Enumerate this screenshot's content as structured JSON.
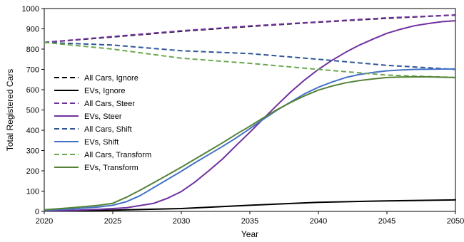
{
  "chart_data": {
    "type": "line",
    "title": "",
    "xlabel": "Year",
    "ylabel": "Total Registered Cars",
    "xlim": [
      2020,
      2050
    ],
    "ylim": [
      0,
      1000
    ],
    "x_ticks": [
      2020,
      2025,
      2030,
      2035,
      2040,
      2045,
      2050
    ],
    "y_ticks": [
      0,
      100,
      200,
      300,
      400,
      500,
      600,
      700,
      800,
      900,
      1000
    ],
    "grid": "none",
    "legend_position": "left",
    "series": [
      {
        "name": "All Cars, Ignore",
        "color": "#000000",
        "dash": "dashed",
        "x": [
          2020,
          2025,
          2030,
          2035,
          2040,
          2045,
          2050
        ],
        "y": [
          833,
          860,
          888,
          912,
          933,
          952,
          968
        ]
      },
      {
        "name": "EVs, Ignore",
        "color": "#000000",
        "dash": "solid",
        "x": [
          2020,
          2025,
          2030,
          2035,
          2040,
          2045,
          2050
        ],
        "y": [
          3,
          6,
          14,
          30,
          45,
          52,
          57
        ]
      },
      {
        "name": "All Cars, Steer",
        "color": "#7030a0",
        "dash": "dashed",
        "x": [
          2020,
          2025,
          2030,
          2035,
          2040,
          2045,
          2050
        ],
        "y": [
          833,
          862,
          890,
          914,
          934,
          954,
          968
        ]
      },
      {
        "name": "EVs, Steer",
        "color": "#7030a0",
        "dash": "solid",
        "x": [
          2020,
          2022,
          2024,
          2026,
          2028,
          2029,
          2030,
          2031,
          2032,
          2033,
          2034,
          2035,
          2036,
          2037,
          2038,
          2039,
          2040,
          2041,
          2042,
          2043,
          2044,
          2045,
          2046,
          2047,
          2048,
          2049,
          2050
        ],
        "y": [
          3,
          5,
          10,
          18,
          40,
          65,
          98,
          145,
          200,
          258,
          325,
          390,
          458,
          525,
          590,
          648,
          700,
          745,
          785,
          820,
          850,
          878,
          898,
          915,
          926,
          935,
          940
        ]
      },
      {
        "name": "All Cars, Shift",
        "color": "#2e5597",
        "dash": "dashed",
        "x": [
          2020,
          2025,
          2030,
          2035,
          2040,
          2045,
          2050
        ],
        "y": [
          833,
          820,
          792,
          778,
          750,
          720,
          700
        ]
      },
      {
        "name": "EVs, Shift",
        "color": "#4472c4",
        "dash": "solid",
        "x": [
          2020,
          2022,
          2024,
          2025,
          2026,
          2027,
          2028,
          2029,
          2030,
          2031,
          2032,
          2033,
          2034,
          2035,
          2036,
          2037,
          2038,
          2039,
          2040,
          2041,
          2042,
          2043,
          2044,
          2045,
          2046,
          2047,
          2048,
          2050
        ],
        "y": [
          5,
          12,
          22,
          30,
          48,
          78,
          118,
          158,
          198,
          240,
          280,
          320,
          362,
          408,
          455,
          500,
          540,
          580,
          612,
          638,
          660,
          675,
          685,
          693,
          697,
          700,
          701,
          702
        ]
      },
      {
        "name": "All Cars, Transform",
        "color": "#6aa84f",
        "dash": "dashed",
        "x": [
          2020,
          2025,
          2030,
          2035,
          2040,
          2045,
          2050
        ],
        "y": [
          833,
          800,
          755,
          730,
          700,
          672,
          660
        ]
      },
      {
        "name": "EVs, Transform",
        "color": "#548235",
        "dash": "solid",
        "x": [
          2020,
          2022,
          2024,
          2025,
          2026,
          2027,
          2028,
          2029,
          2030,
          2031,
          2032,
          2033,
          2034,
          2035,
          2036,
          2037,
          2038,
          2039,
          2040,
          2041,
          2042,
          2043,
          2044,
          2045,
          2046,
          2047,
          2048,
          2050
        ],
        "y": [
          8,
          18,
          30,
          40,
          70,
          105,
          142,
          180,
          218,
          258,
          298,
          338,
          380,
          420,
          462,
          502,
          538,
          570,
          598,
          618,
          634,
          645,
          653,
          660,
          662,
          663,
          663,
          660
        ]
      }
    ]
  }
}
